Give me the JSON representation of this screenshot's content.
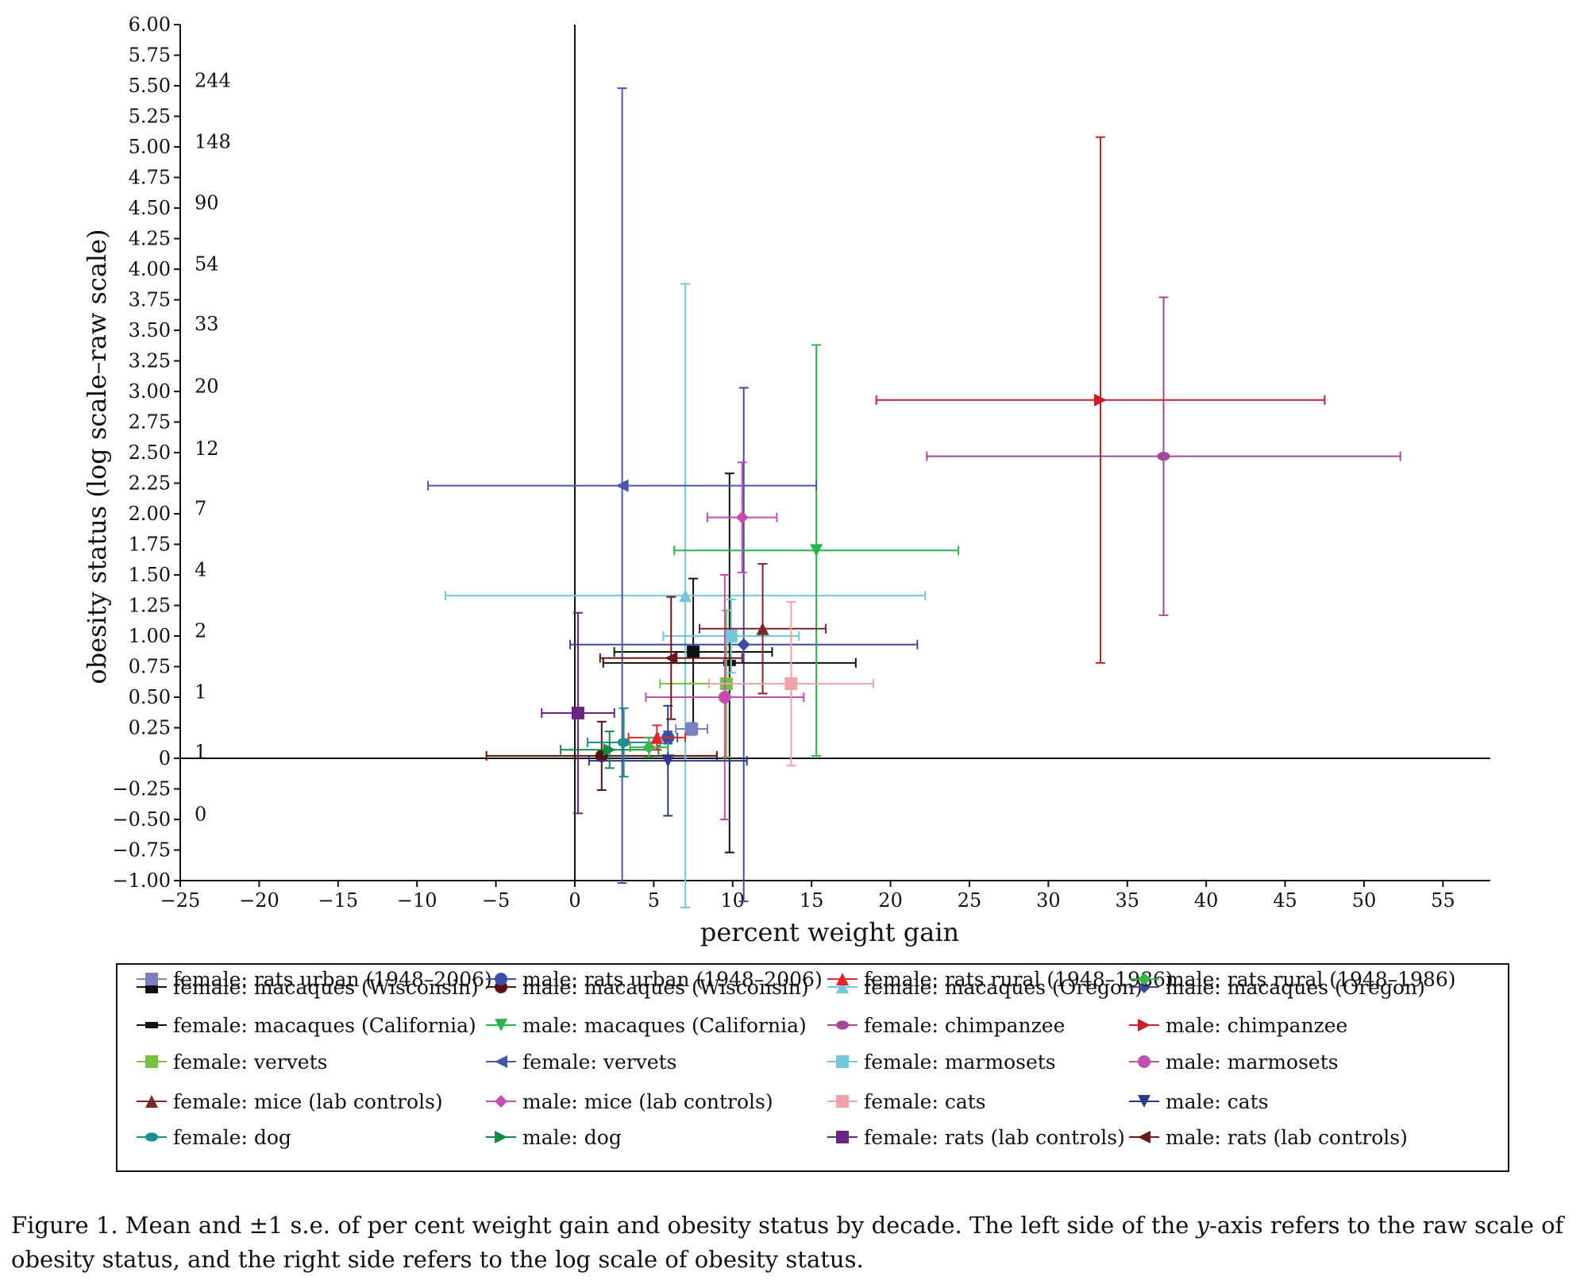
{
  "chart_data": {
    "type": "scatter",
    "title": "",
    "xlabel": "percent weight gain",
    "ylabel": "obesity status (log scale–raw scale)",
    "xlim": [
      -25,
      58
    ],
    "ylim": [
      -1.0,
      6.0
    ],
    "x_ticks": [
      -25,
      -20,
      -15,
      -10,
      -5,
      0,
      5,
      10,
      15,
      20,
      25,
      30,
      35,
      40,
      45,
      50,
      55
    ],
    "x_tick_labels": [
      "−25",
      "−20",
      "−15",
      "−10",
      "−5",
      "0",
      "5",
      "10",
      "15",
      "20",
      "25",
      "30",
      "35",
      "40",
      "45",
      "50",
      "55"
    ],
    "y_ticks": [
      -1.0,
      -0.75,
      -0.5,
      -0.25,
      0,
      0.25,
      0.5,
      0.75,
      1.0,
      1.25,
      1.5,
      1.75,
      2.0,
      2.25,
      2.5,
      2.75,
      3.0,
      3.25,
      3.5,
      3.75,
      4.0,
      4.25,
      4.5,
      4.75,
      5.0,
      5.25,
      5.5,
      5.75,
      6.0
    ],
    "y_tick_labels": [
      "−1.00",
      "−0.75",
      "−0.50",
      "−0.25",
      "0",
      "0.25",
      "0.50",
      "0.75",
      "1.00",
      "1.25",
      "1.50",
      "1.75",
      "2.00",
      "2.25",
      "2.50",
      "2.75",
      "3.00",
      "3.25",
      "3.50",
      "3.75",
      "4.00",
      "4.25",
      "4.50",
      "4.75",
      "5.00",
      "5.25",
      "5.50",
      "5.75",
      "6.00"
    ],
    "raw_scale_labels": [
      {
        "y": 5.55,
        "label": "244"
      },
      {
        "y": 5.05,
        "label": "148"
      },
      {
        "y": 4.55,
        "label": "90"
      },
      {
        "y": 4.05,
        "label": "54"
      },
      {
        "y": 3.56,
        "label": "33"
      },
      {
        "y": 3.05,
        "label": "20"
      },
      {
        "y": 2.54,
        "label": "12"
      },
      {
        "y": 2.05,
        "label": "7"
      },
      {
        "y": 1.55,
        "label": "4"
      },
      {
        "y": 1.05,
        "label": "2"
      },
      {
        "y": 0.55,
        "label": "1"
      },
      {
        "y": 0.06,
        "label": "1"
      },
      {
        "y": -0.45,
        "label": "0"
      }
    ],
    "reference_lines": {
      "x": 0,
      "y": 0
    },
    "legend_position": "bottom",
    "series": [
      {
        "name": "female: macaques (Wisconsin)",
        "color": "#111111",
        "marker": "square",
        "points": [
          {
            "x": 7.5,
            "y": 0.87,
            "xerr": 5.0,
            "yerr": 0.6
          }
        ]
      },
      {
        "name": "male: macaques (Wisconsin)",
        "color": "#5a1010",
        "marker": "circle",
        "points": [
          {
            "x": 1.7,
            "y": 0.02,
            "xerr": 7.3,
            "yerr": 0.28
          }
        ]
      },
      {
        "name": "female: macaques (Oregon)",
        "color": "#74c6d8",
        "marker": "triangle-up",
        "points": [
          {
            "x": 7.0,
            "y": 1.33,
            "xerr": 15.2,
            "yerr": 2.55
          }
        ]
      },
      {
        "name": "male: macaques (Oregon)",
        "color": "#3d4b9c",
        "marker": "diamond",
        "points": [
          {
            "x": 10.7,
            "y": 0.93,
            "xerr": 11.0,
            "yerr": 2.1
          }
        ]
      },
      {
        "name": "female: macaques (California)",
        "color": "#111111",
        "marker": "dash",
        "points": [
          {
            "x": 9.8,
            "y": 0.78,
            "xerr": 8.0,
            "yerr": 1.55
          }
        ]
      },
      {
        "name": "male: macaques (California)",
        "color": "#2cb34a",
        "marker": "triangle-down",
        "points": [
          {
            "x": 15.3,
            "y": 1.7,
            "xerr": 9.0,
            "yerr": 1.68
          }
        ]
      },
      {
        "name": "female: chimpanzee",
        "color": "#a4489c",
        "marker": "half-circle",
        "points": [
          {
            "x": 37.3,
            "y": 2.47,
            "xerr": 15.0,
            "yerr": 1.3
          }
        ]
      },
      {
        "name": "male: chimpanzee",
        "color": "#c8202a",
        "marker": "triangle-right",
        "points": [
          {
            "x": 33.3,
            "y": 2.93,
            "xerr": 14.2,
            "yerr": 2.15
          }
        ]
      },
      {
        "name": "female: vervets",
        "color": "#7ac143",
        "marker": "square",
        "points": [
          {
            "x": 9.6,
            "y": 0.61,
            "xerr": 4.2,
            "yerr": 0.6
          }
        ]
      },
      {
        "name": "female: vervets",
        "color": "#4858a8",
        "marker": "triangle-left",
        "points": [
          {
            "x": 3.0,
            "y": 2.23,
            "xerr": 12.3,
            "yerr": 3.25
          }
        ]
      },
      {
        "name": "female: marmosets",
        "color": "#74c6d8",
        "marker": "square",
        "points": [
          {
            "x": 9.9,
            "y": 1.0,
            "xerr": 4.3,
            "yerr": 0.3
          }
        ]
      },
      {
        "name": "male: marmosets",
        "color": "#c24fb0",
        "marker": "circle",
        "points": [
          {
            "x": 9.5,
            "y": 0.5,
            "xerr": 5.0,
            "yerr": 1.0
          }
        ]
      },
      {
        "name": "female: mice (lab controls)",
        "color": "#7a2828",
        "marker": "triangle-up",
        "points": [
          {
            "x": 11.9,
            "y": 1.06,
            "xerr": 4.0,
            "yerr": 0.53
          }
        ]
      },
      {
        "name": "male: mice (lab controls)",
        "color": "#c24fb0",
        "marker": "diamond",
        "points": [
          {
            "x": 10.6,
            "y": 1.97,
            "xerr": 2.2,
            "yerr": 0.45
          }
        ]
      },
      {
        "name": "female: cats",
        "color": "#f0a3a8",
        "marker": "square",
        "points": [
          {
            "x": 13.7,
            "y": 0.61,
            "xerr": 5.2,
            "yerr": 0.67
          }
        ]
      },
      {
        "name": "male: cats",
        "color": "#2d3a8c",
        "marker": "triangle-down",
        "points": [
          {
            "x": 5.9,
            "y": -0.02,
            "xerr": 5.0,
            "yerr": 0.45
          }
        ]
      },
      {
        "name": "female: dog",
        "color": "#1a8f8f",
        "marker": "half-circle",
        "points": [
          {
            "x": 3.1,
            "y": 0.13,
            "xerr": 2.3,
            "yerr": 0.28
          }
        ]
      },
      {
        "name": "male: dog",
        "color": "#128a4a",
        "marker": "triangle-right",
        "points": [
          {
            "x": 2.2,
            "y": 0.07,
            "xerr": 3.1,
            "yerr": 0.15
          }
        ]
      },
      {
        "name": "female: rats (lab controls)",
        "color": "#6a2580",
        "marker": "square",
        "points": [
          {
            "x": 0.2,
            "y": 0.37,
            "xerr": 2.3,
            "yerr": 0.82
          }
        ]
      },
      {
        "name": "male: rats (lab controls)",
        "color": "#6b1818",
        "marker": "triangle-left",
        "points": [
          {
            "x": 6.1,
            "y": 0.82,
            "xerr": 4.5,
            "yerr": 0.5
          }
        ]
      },
      {
        "name": "female: rats urban (1948–2006)",
        "color": "#7a7fc0",
        "marker": "square",
        "points": [
          {
            "x": 7.4,
            "y": 0.24,
            "xerr": 1.0,
            "yerr": 0.05
          }
        ]
      },
      {
        "name": "male: rats urban (1948–2006)",
        "color": "#3850a8",
        "marker": "circle",
        "points": [
          {
            "x": 5.9,
            "y": 0.17,
            "xerr": 0.6,
            "yerr": 0.05
          }
        ]
      },
      {
        "name": "female: rats rural (1948–1986)",
        "color": "#e0262b",
        "marker": "triangle-up",
        "points": [
          {
            "x": 5.2,
            "y": 0.17,
            "xerr": 1.8,
            "yerr": 0.1
          }
        ]
      },
      {
        "name": "male: rats rural (1948–1986)",
        "color": "#3ab54a",
        "marker": "diamond",
        "points": [
          {
            "x": 4.7,
            "y": 0.09,
            "xerr": 1.2,
            "yerr": 0.08
          }
        ]
      }
    ]
  },
  "legend": [
    {
      "label": "female: macaques (Wisconsin)",
      "marker": "square",
      "color": "#111111"
    },
    {
      "label": "male: macaques (Wisconsin)",
      "marker": "circle",
      "color": "#5a1010"
    },
    {
      "label": "female: macaques (Oregon)",
      "marker": "triangle-up",
      "color": "#74c6d8"
    },
    {
      "label": "male: macaques (Oregon)",
      "marker": "diamond",
      "color": "#3d4b9c"
    },
    {
      "label": "female: macaques (California)",
      "marker": "dash",
      "color": "#111111"
    },
    {
      "label": "male: macaques (California)",
      "marker": "triangle-down",
      "color": "#2cb34a"
    },
    {
      "label": "female: chimpanzee",
      "marker": "half-circle",
      "color": "#a4489c"
    },
    {
      "label": "male: chimpanzee",
      "marker": "triangle-right",
      "color": "#c8202a"
    },
    {
      "label": "female: vervets",
      "marker": "square",
      "color": "#7ac143"
    },
    {
      "label": "female: vervets",
      "marker": "triangle-left",
      "color": "#4858a8"
    },
    {
      "label": "female: marmosets",
      "marker": "square",
      "color": "#74c6d8"
    },
    {
      "label": "male: marmosets",
      "marker": "circle",
      "color": "#c24fb0"
    },
    {
      "label": "female: mice (lab controls)",
      "marker": "triangle-up",
      "color": "#7a2828"
    },
    {
      "label": "male: mice (lab controls)",
      "marker": "diamond",
      "color": "#c24fb0"
    },
    {
      "label": "female: cats",
      "marker": "square",
      "color": "#f0a3a8"
    },
    {
      "label": "male: cats",
      "marker": "triangle-down",
      "color": "#2d3a8c"
    },
    {
      "label": "female: dog",
      "marker": "half-circle",
      "color": "#1a8f8f"
    },
    {
      "label": "male: dog",
      "marker": "triangle-right",
      "color": "#128a4a"
    },
    {
      "label": "female: rats (lab controls)",
      "marker": "square",
      "color": "#6a2580"
    },
    {
      "label": "male: rats (lab controls)",
      "marker": "triangle-left",
      "color": "#6b1818"
    },
    {
      "label": "female: rats urban (1948–2006)",
      "marker": "square",
      "color": "#7a7fc0"
    },
    {
      "label": "male: rats urban (1948–2006)",
      "marker": "circle",
      "color": "#3850a8"
    },
    {
      "label": "female: rats rural (1948–1986)",
      "marker": "triangle-up",
      "color": "#e0262b"
    },
    {
      "label": "male: rats rural (1948–1986)",
      "marker": "diamond",
      "color": "#3ab54a"
    }
  ],
  "caption": {
    "lead": "Figure 1.",
    "text_a": "Mean and ±1 s.e. of per cent weight gain and obesity status by decade. The left side of the ",
    "y_word": "y",
    "text_b": "-axis refers to the raw scale of obesity status, and the right side refers to the log scale of obesity status."
  }
}
